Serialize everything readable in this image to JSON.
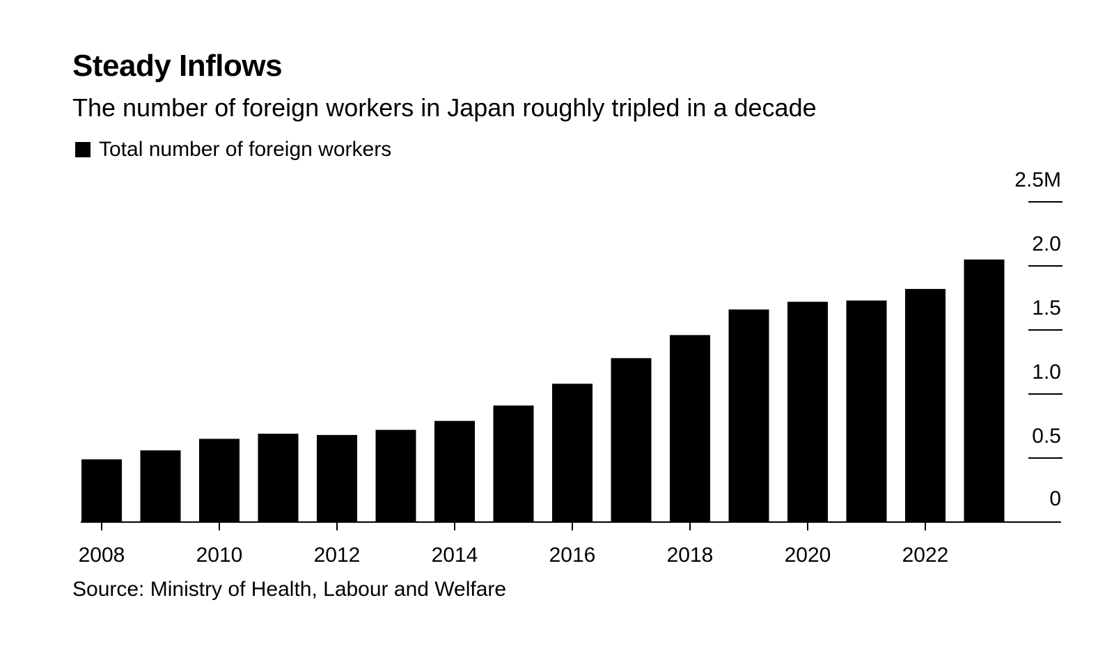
{
  "title": "Steady Inflows",
  "subtitle": "The number of foreign workers in Japan roughly tripled in a decade",
  "legend_label": "Total number of foreign workers",
  "source": "Source: Ministry of Health, Labour and Welfare",
  "bar_color": "#000000",
  "chart_data": {
    "type": "bar",
    "title": "Steady Inflows",
    "subtitle": "The number of foreign workers in Japan roughly tripled in a decade",
    "categories": [
      "2008",
      "2009",
      "2010",
      "2011",
      "2012",
      "2013",
      "2014",
      "2015",
      "2016",
      "2017",
      "2018",
      "2019",
      "2020",
      "2021",
      "2022",
      "2023"
    ],
    "series": [
      {
        "name": "Total number of foreign workers",
        "values": [
          0.49,
          0.56,
          0.65,
          0.69,
          0.68,
          0.72,
          0.79,
          0.91,
          1.08,
          1.28,
          1.46,
          1.66,
          1.72,
          1.73,
          1.82,
          2.05
        ]
      }
    ],
    "x_tick_labels": [
      "2008",
      "2010",
      "2012",
      "2014",
      "2016",
      "2018",
      "2020",
      "2022"
    ],
    "y_ticks": [
      0,
      0.5,
      1.0,
      1.5,
      2.0,
      2.5
    ],
    "y_tick_labels": [
      "0",
      "0.5",
      "1.0",
      "1.5",
      "2.0",
      "2.5M"
    ],
    "ylim": [
      0,
      2.5
    ],
    "y_axis_side": "right",
    "xlabel": "",
    "ylabel": ""
  }
}
